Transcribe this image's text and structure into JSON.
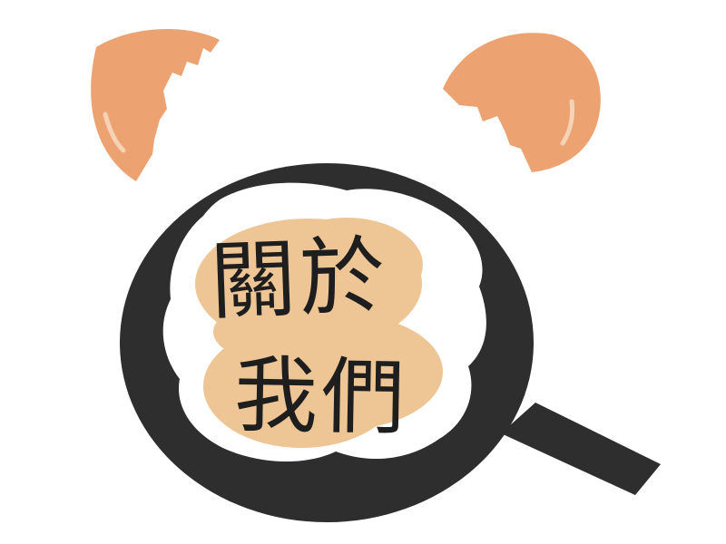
{
  "illustration": {
    "heading_line_1": "關於",
    "heading_line_2": "我們"
  },
  "colors": {
    "pan": "#2e2e2e",
    "egg_white": "#ffffff",
    "yolk": "#eec696",
    "shell": "#eca371",
    "shell_highlight": "#f6d3b6",
    "text": "#1e1e1e",
    "background": "#ffffff"
  },
  "icons": [
    "frying-pan-icon",
    "fried-egg-icon",
    "eggshell-icon"
  ]
}
